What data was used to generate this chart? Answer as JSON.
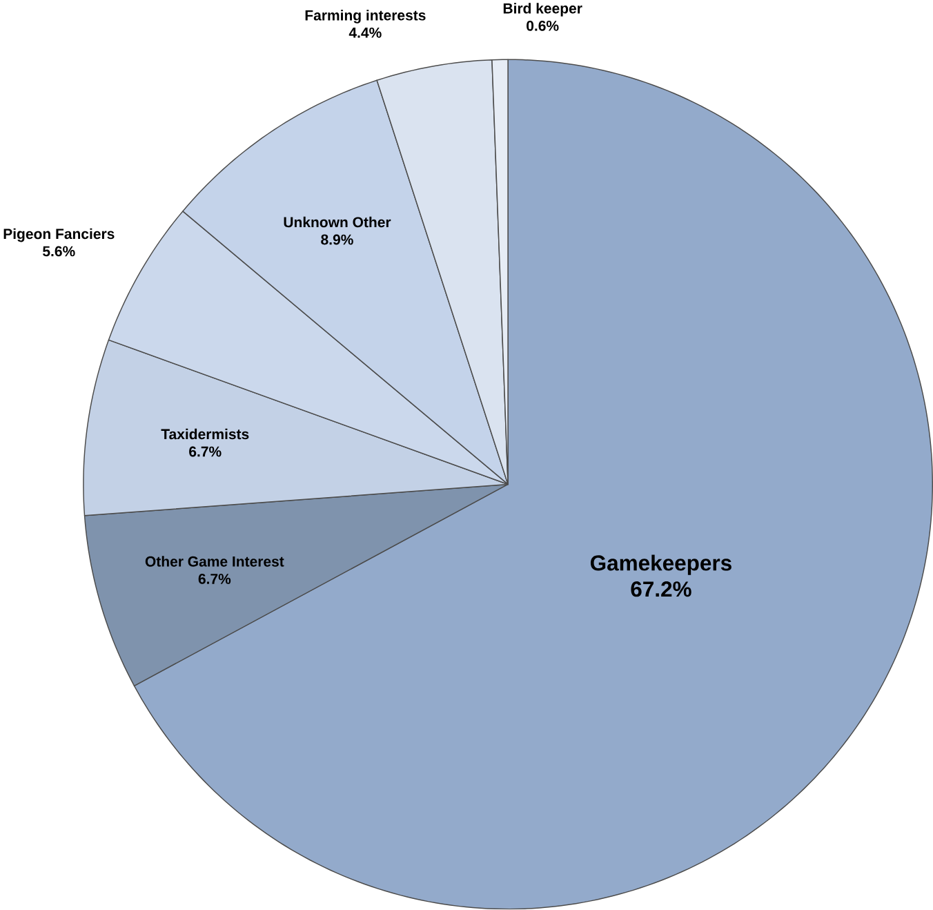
{
  "chart_data": {
    "type": "pie",
    "categories": [
      "Gamekeepers",
      "Other Game Interest",
      "Taxidermists",
      "Pigeon Fanciers",
      "Unknown Other",
      "Farming interests",
      "Bird keeper"
    ],
    "values": [
      67.2,
      6.7,
      6.7,
      5.6,
      8.9,
      4.4,
      0.6
    ],
    "value_labels": [
      "67.2%",
      "6.7%",
      "6.7%",
      "5.6%",
      "8.9%",
      "4.4%",
      "0.6%"
    ],
    "colors": [
      "#93aacb",
      "#7f93ad",
      "#c3d1e6",
      "#cbd8ec",
      "#c4d3ea",
      "#dae3f0",
      "#e6ecf5"
    ]
  }
}
